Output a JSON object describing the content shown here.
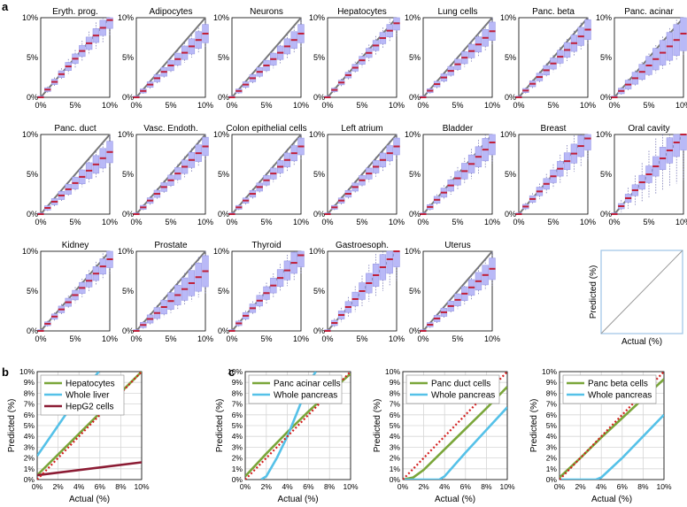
{
  "figure": {
    "panel_a": "a",
    "panel_b": "b",
    "panel_c": "c"
  },
  "colors": {
    "ideal_line": "#777777",
    "median": "#c0203a",
    "box_fill": "#b9b9f7",
    "box_edge": "#9a9ae6",
    "whisker": "#6666aa",
    "green": "#7aa63a",
    "cyan": "#55c1e8",
    "maroon": "#8c1c34",
    "red_dotted": "#d42020",
    "grid": "#d6d6d6",
    "schematic_border": "#9cc3e6"
  },
  "chart_data": [
    {
      "id": "panel_a",
      "type": "box",
      "x_ticks": [
        "0%",
        "5%",
        "10%"
      ],
      "y_ticks": [
        "0%",
        "5%",
        "10%"
      ],
      "xlim": [
        0,
        10
      ],
      "ylim": [
        0,
        10
      ],
      "x_values": [
        0,
        1,
        2,
        3,
        4,
        5,
        6,
        7,
        8,
        9,
        10
      ],
      "tissues": [
        {
          "title": "Eryth. prog.",
          "median_slope": 0.97,
          "spread": 0.9,
          "whisker": 1.8
        },
        {
          "title": "Adipocytes",
          "median_slope": 0.8,
          "spread": 1.0,
          "whisker": 1.5
        },
        {
          "title": "Neurons",
          "median_slope": 0.8,
          "spread": 1.0,
          "whisker": 1.6
        },
        {
          "title": "Hepatocytes",
          "median_slope": 0.93,
          "spread": 0.7,
          "whisker": 1.4
        },
        {
          "title": "Lung cells",
          "median_slope": 0.83,
          "spread": 1.0,
          "whisker": 1.6
        },
        {
          "title": "Panc. beta",
          "median_slope": 0.85,
          "spread": 1.1,
          "whisker": 1.7
        },
        {
          "title": "Panc. acinar",
          "median_slope": 0.8,
          "spread": 2.0,
          "whisker": 2.6
        },
        {
          "title": "Panc. duct",
          "median_slope": 0.78,
          "spread": 1.2,
          "whisker": 1.8
        },
        {
          "title": "Vasc. Endoth.",
          "median_slope": 0.85,
          "spread": 1.0,
          "whisker": 1.6
        },
        {
          "title": "Colon epithelial cells",
          "median_slope": 0.85,
          "spread": 0.9,
          "whisker": 1.5
        },
        {
          "title": "Left atrium",
          "median_slope": 0.85,
          "spread": 0.9,
          "whisker": 1.5
        },
        {
          "title": "Bladder",
          "median_slope": 0.9,
          "spread": 1.4,
          "whisker": 2.4
        },
        {
          "title": "Breast",
          "median_slope": 0.95,
          "spread": 1.3,
          "whisker": 2.6
        },
        {
          "title": "Oral cavity",
          "median_slope": 1.0,
          "spread": 1.8,
          "whisker": 5.5
        },
        {
          "title": "Kidney",
          "median_slope": 0.9,
          "spread": 0.9,
          "whisker": 1.6
        },
        {
          "title": "Prostate",
          "median_slope": 0.75,
          "spread": 1.8,
          "whisker": 2.6
        },
        {
          "title": "Thyroid",
          "median_slope": 0.95,
          "spread": 1.3,
          "whisker": 2.2
        },
        {
          "title": "Gastroesoph.",
          "median_slope": 1.0,
          "spread": 1.8,
          "whisker": 3.5
        },
        {
          "title": "Uterus",
          "median_slope": 0.78,
          "spread": 1.2,
          "whisker": 1.9
        }
      ],
      "schematic": {
        "ylabel": "Predicted (%)",
        "xlabel": "Actual (%)"
      }
    },
    {
      "id": "panel_b",
      "type": "line",
      "xlabel": "Actual (%)",
      "ylabel": "Predicted (%)",
      "xlim": [
        0,
        10
      ],
      "ylim": [
        0,
        10
      ],
      "x_ticks": [
        "0%",
        "2%",
        "4%",
        "6%",
        "8%",
        "10%"
      ],
      "y_ticks": [
        "0%",
        "1%",
        "2%",
        "3%",
        "4%",
        "5%",
        "6%",
        "7%",
        "8%",
        "9%",
        "10%"
      ],
      "legend": [
        "Hepatocytes",
        "Whole liver",
        "HepG2 cells"
      ],
      "series": [
        {
          "name": "Hepatocytes",
          "color": "green",
          "x": [
            0,
            10
          ],
          "y": [
            0.4,
            10
          ]
        },
        {
          "name": "Whole liver",
          "color": "cyan",
          "x": [
            0,
            1,
            2,
            3,
            4,
            5,
            5.9
          ],
          "y": [
            2.2,
            3.6,
            5.0,
            6.4,
            7.7,
            8.9,
            10
          ]
        },
        {
          "name": "HepG2 cells",
          "color": "maroon",
          "x": [
            0,
            10
          ],
          "y": [
            0.4,
            1.6
          ]
        },
        {
          "name": "Ideal",
          "color": "red_dotted",
          "x": [
            0,
            10
          ],
          "y": [
            0,
            10
          ]
        }
      ]
    },
    {
      "id": "panel_c",
      "type": "line",
      "subplots": [
        {
          "xlabel": "Actual (%)",
          "ylabel": "Predicted (%)",
          "xlim": [
            0,
            10
          ],
          "ylim": [
            0,
            10
          ],
          "x_ticks": [
            "0%",
            "2%",
            "4%",
            "6%",
            "8%",
            "10%"
          ],
          "y_ticks": [
            "0%",
            "1%",
            "2%",
            "3%",
            "4%",
            "5%",
            "6%",
            "7%",
            "8%",
            "9%",
            "10%"
          ],
          "legend": [
            "Panc acinar cells",
            "Whole pancreas"
          ],
          "series": [
            {
              "name": "Panc acinar cells",
              "color": "green",
              "x": [
                0,
                2,
                4,
                6,
                8,
                10
              ],
              "y": [
                0.3,
                2.4,
                4.4,
                6.3,
                8.1,
                9.8
              ]
            },
            {
              "name": "Whole pancreas",
              "color": "cyan",
              "x": [
                1.5,
                2,
                3,
                4,
                5,
                6,
                6.7
              ],
              "y": [
                0,
                0.3,
                2.0,
                4.0,
                6.4,
                8.9,
                10
              ]
            },
            {
              "name": "Ideal",
              "color": "red_dotted",
              "x": [
                0,
                10
              ],
              "y": [
                0,
                10
              ]
            }
          ]
        },
        {
          "xlabel": "Actual (%)",
          "ylabel": "Predicted (%)",
          "xlim": [
            0,
            10
          ],
          "ylim": [
            0,
            10
          ],
          "x_ticks": [
            "0%",
            "2%",
            "4%",
            "6%",
            "8%",
            "10%"
          ],
          "y_ticks": [
            "0%",
            "1%",
            "2%",
            "3%",
            "4%",
            "5%",
            "6%",
            "7%",
            "8%",
            "9%",
            "10%"
          ],
          "legend": [
            "Panc duct cells",
            "Whole pancreas"
          ],
          "series": [
            {
              "name": "Panc duct cells",
              "color": "green",
              "x": [
                0,
                1,
                2,
                4,
                6,
                8,
                10
              ],
              "y": [
                0,
                0.2,
                0.9,
                2.8,
                4.7,
                6.6,
                8.6
              ]
            },
            {
              "name": "Whole pancreas",
              "color": "cyan",
              "x": [
                0,
                3.5,
                4,
                6,
                8,
                10
              ],
              "y": [
                0,
                0,
                0.3,
                2.5,
                4.6,
                6.7
              ]
            },
            {
              "name": "Ideal",
              "color": "red_dotted",
              "x": [
                0,
                10
              ],
              "y": [
                0,
                10
              ]
            }
          ]
        },
        {
          "xlabel": "Actual (%)",
          "ylabel": "Predicted (%)",
          "xlim": [
            0,
            10
          ],
          "ylim": [
            0,
            10
          ],
          "x_ticks": [
            "0%",
            "2%",
            "4%",
            "6%",
            "8%",
            "10%"
          ],
          "y_ticks": [
            "0%",
            "1%",
            "2%",
            "3%",
            "4%",
            "5%",
            "6%",
            "7%",
            "8%",
            "9%",
            "10%"
          ],
          "legend": [
            "Panc beta cells",
            "Whole pancreas"
          ],
          "series": [
            {
              "name": "Panc beta cells",
              "color": "green",
              "x": [
                0,
                2,
                4,
                6,
                8,
                10
              ],
              "y": [
                0.2,
                2.0,
                3.9,
                5.7,
                7.5,
                9.3
              ]
            },
            {
              "name": "Whole pancreas",
              "color": "cyan",
              "x": [
                0,
                3.5,
                4,
                6,
                8,
                10
              ],
              "y": [
                0,
                0,
                0.2,
                2.0,
                4.0,
                6.0
              ]
            },
            {
              "name": "Ideal",
              "color": "red_dotted",
              "x": [
                0,
                10
              ],
              "y": [
                0,
                10
              ]
            }
          ]
        }
      ]
    }
  ]
}
